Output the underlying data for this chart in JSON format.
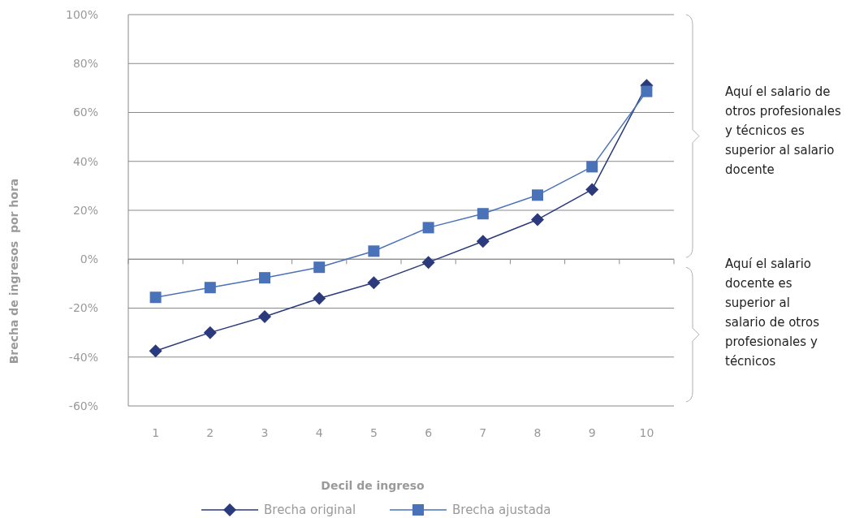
{
  "chart_data": {
    "type": "line",
    "xlabel": "Decil de ingreso",
    "ylabel": "Brecha de ingresos  por hora",
    "categories": [
      "1",
      "2",
      "3",
      "4",
      "5",
      "6",
      "7",
      "8",
      "9",
      "10"
    ],
    "series": [
      {
        "name": "Brecha original",
        "color": "#2b3a7c",
        "marker": "diamond",
        "values": [
          -37.5,
          -30,
          -23.5,
          -16,
          -9.6,
          -1.3,
          7.3,
          16.2,
          28.5,
          71
        ]
      },
      {
        "name": "Brecha ajustada",
        "color": "#4a72b8",
        "marker": "square",
        "values": [
          -15.6,
          -11.6,
          -7.6,
          -3.3,
          3.3,
          12.9,
          18.6,
          26.2,
          37.8,
          68.6
        ]
      }
    ],
    "ylim": [
      -60,
      100
    ],
    "yticks": [
      {
        "value": -60,
        "label": "-60%"
      },
      {
        "value": -40,
        "label": "-40%"
      },
      {
        "value": -20,
        "label": "-20%"
      },
      {
        "value": 0,
        "label": "0%"
      },
      {
        "value": 20,
        "label": "20%"
      },
      {
        "value": 40,
        "label": "40%"
      },
      {
        "value": 60,
        "label": "60%"
      },
      {
        "value": 80,
        "label": "80%"
      },
      {
        "value": 100,
        "label": "100%"
      }
    ],
    "grid": "y",
    "legend": "bottom",
    "annotations": [
      "Aquí el salario de otros profesionales y técnicos es superior al salario docente",
      "Aquí el salario docente es superior al salario de otros profesionales y técnicos"
    ]
  }
}
